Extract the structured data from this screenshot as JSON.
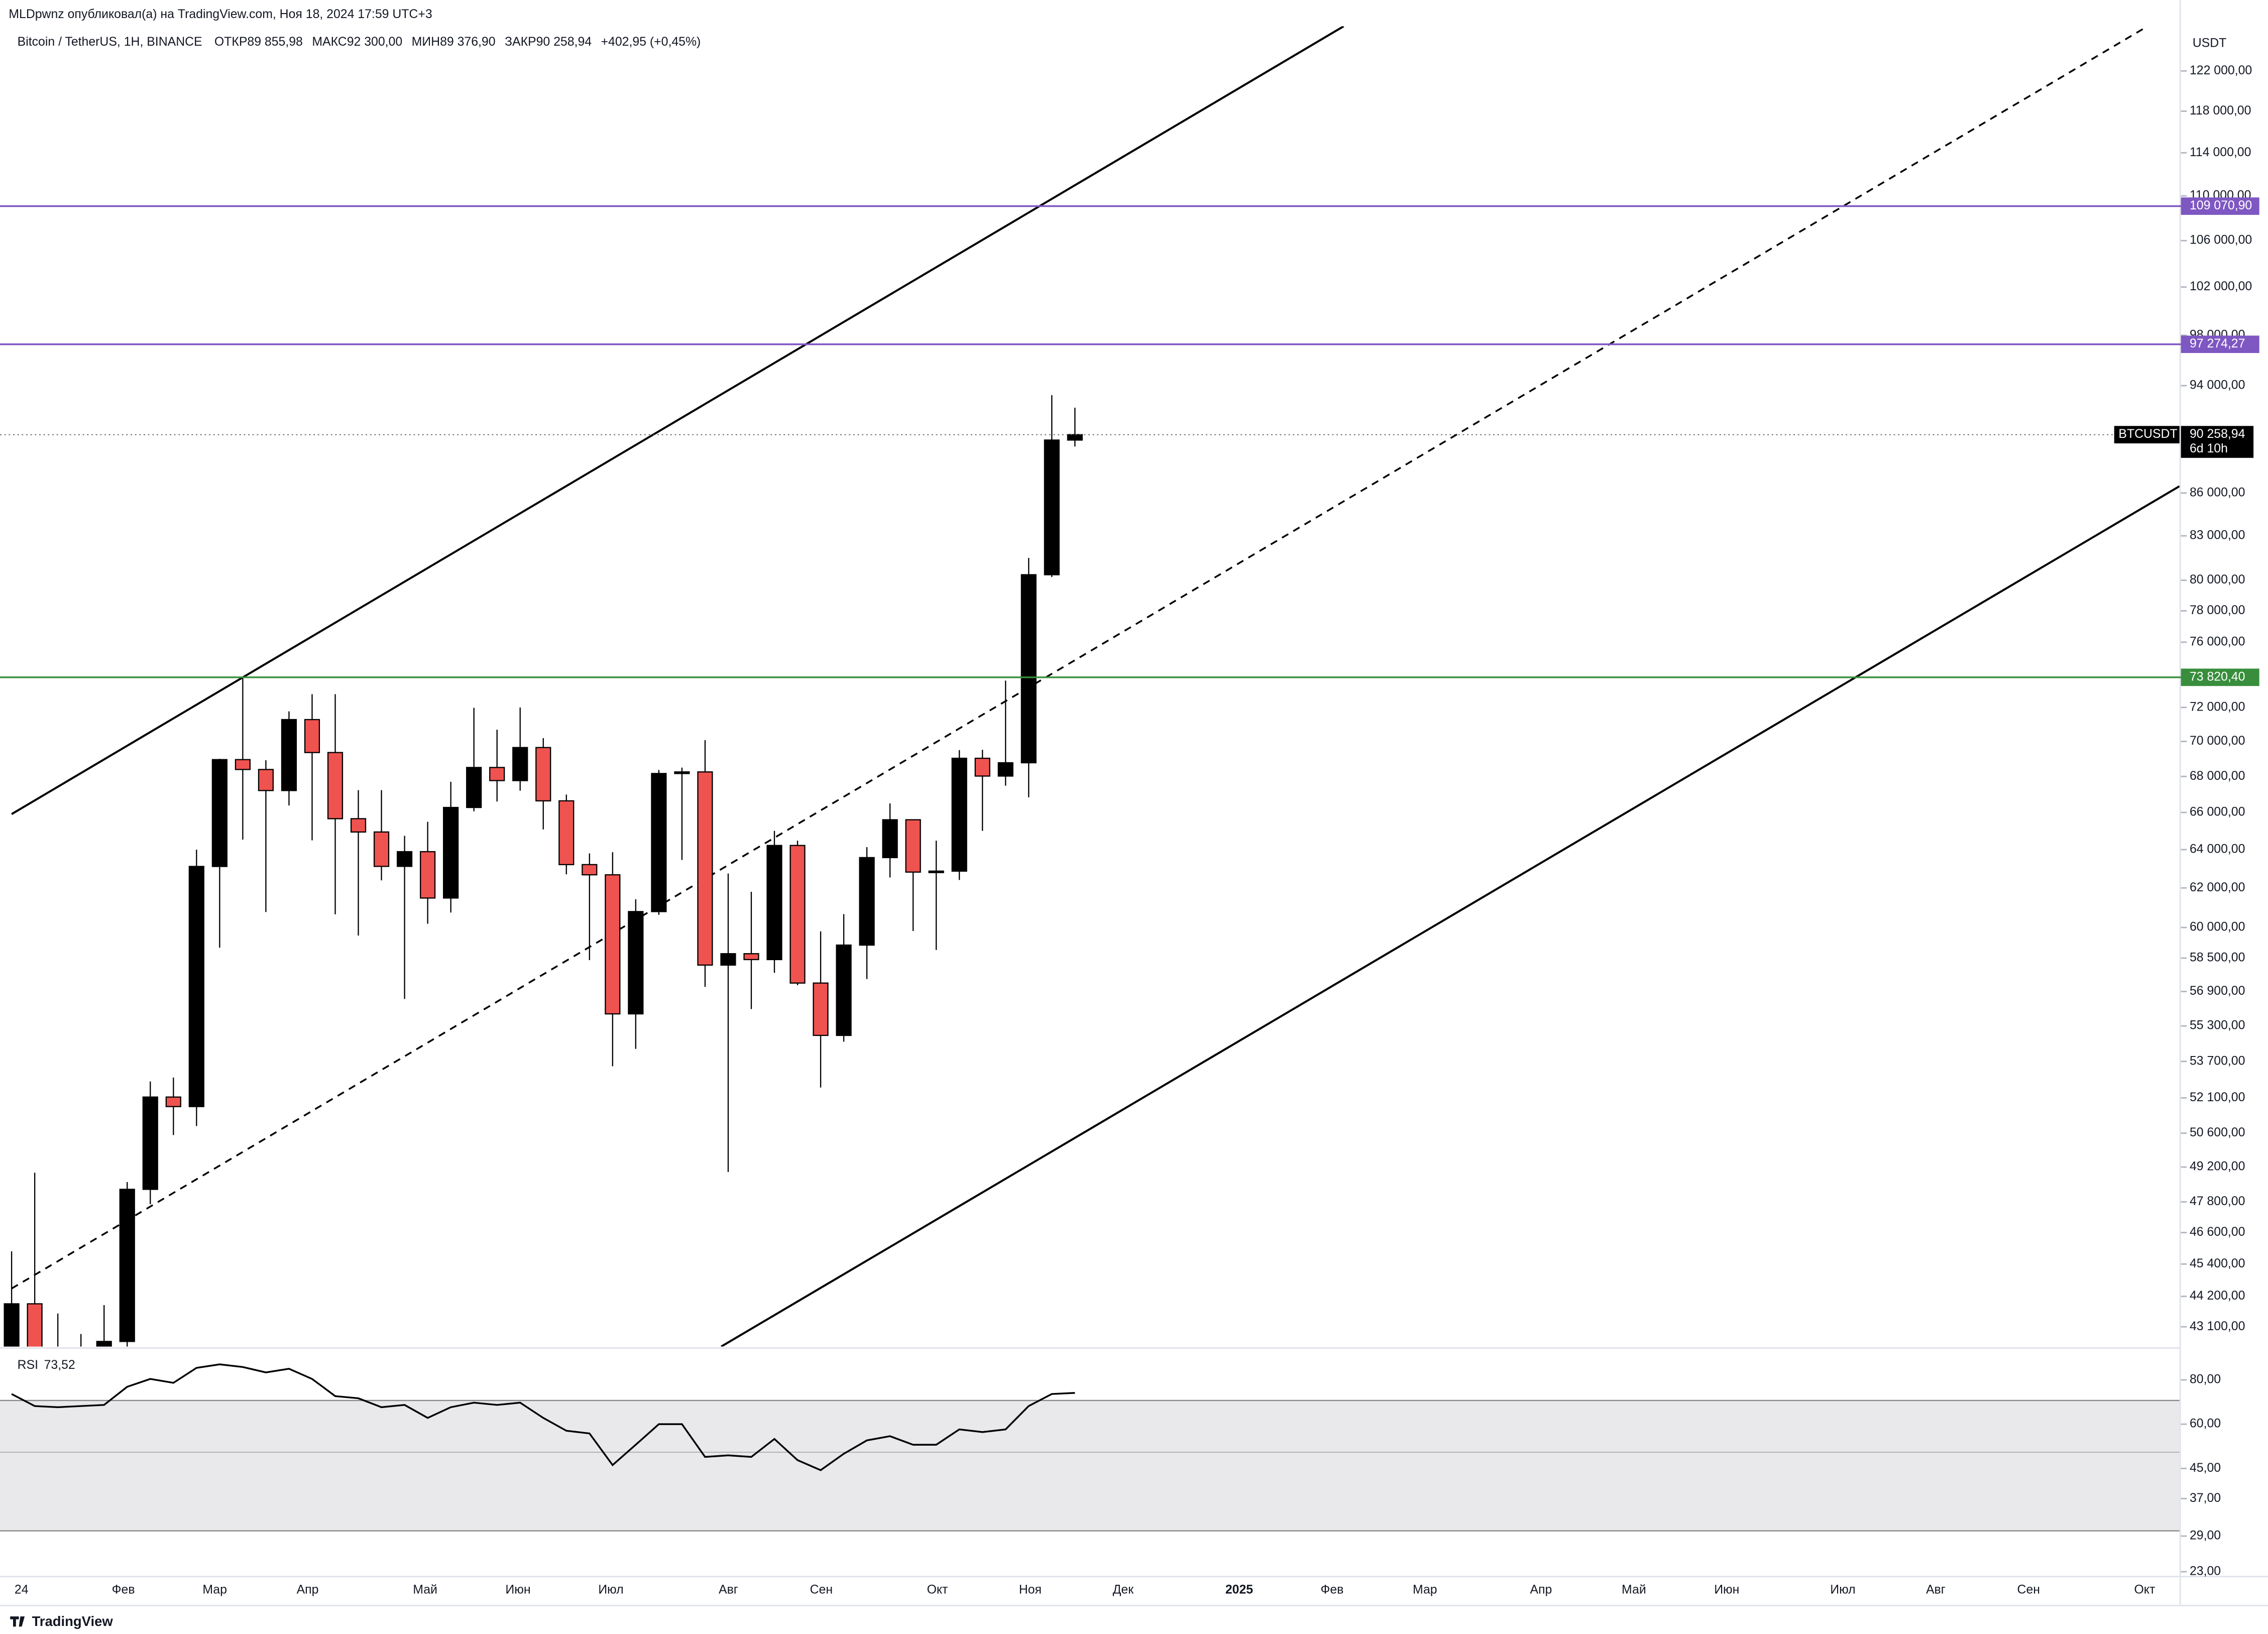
{
  "chart_data": {
    "type": "candlestick",
    "header": "MLDpwnz опубликовал(а) на TradingView.com, Ноя 18, 2024 17:59 UTC+3",
    "title": "Bitcoin / TetherUS, 1H, BINANCE",
    "legend": {
      "open_label": "ОТКР",
      "open": "89 855,98",
      "high_label": "МАКС",
      "high": "92 300,00",
      "low_label": "МИН",
      "low": "89 376,90",
      "close_label": "ЗАКР",
      "close": "90 258,94",
      "change": "+402,95 (+0,45%)"
    },
    "axis_unit": "USDT",
    "log_scale": true,
    "up_color": "#000000",
    "down_color": "#ef5350",
    "series": [
      {
        "name": "BTCUSDT",
        "open": [
          42283,
          43929,
          41732,
          41580,
          42031,
          42580,
          48299,
          52137,
          51728,
          63113,
          68955,
          68393,
          67210,
          71280,
          69360,
          65661,
          64941,
          63118,
          63891,
          61484,
          66274,
          68507,
          67766,
          69648,
          66639,
          63210,
          62678,
          55857,
          60797,
          68165,
          68255,
          58161,
          58712,
          58427,
          64220,
          57301,
          54869,
          59132,
          63578,
          65603,
          62819,
          62870,
          69031,
          68021,
          68775,
          80370,
          89855.98
        ],
        "high": [
          45879,
          48969,
          43578,
          42842,
          43882,
          48592,
          52816,
          52985,
          64000,
          69000,
          73777,
          68920,
          71769,
          72797,
          72797,
          67233,
          67232,
          64734,
          65494,
          67700,
          71979,
          70687,
          71997,
          70195,
          66985,
          63800,
          63861,
          61420,
          68366,
          68500,
          70079,
          62745,
          61800,
          65000,
          64481,
          59810,
          60670,
          64133,
          66498,
          65618,
          64478,
          69500,
          69519,
          73620,
          81500,
          93265,
          92300
        ],
        "low": [
          40750,
          41500,
          40280,
          38555,
          41804,
          42258,
          47710,
          50521,
          50901,
          59005,
          64533,
          60775,
          66385,
          64493,
          60660,
          59600,
          62391,
          56552,
          60187,
          60749,
          66060,
          66600,
          67200,
          65078,
          62700,
          58402,
          53485,
          54260,
          60632,
          63456,
          57122,
          49000,
          56078,
          57787,
          57201,
          52550,
          54583,
          57493,
          62538,
          59828,
          58895,
          62412,
          65000,
          67478,
          66835,
          80216,
          89376.9
        ],
        "close": [
          43929,
          41732,
          41580,
          42031,
          42580,
          48299,
          52137,
          51728,
          63113,
          68955,
          68393,
          67210,
          71280,
          69360,
          65661,
          64941,
          63118,
          63891,
          61484,
          66274,
          68507,
          67766,
          69648,
          66639,
          63210,
          62678,
          55857,
          60797,
          68165,
          68255,
          58161,
          58712,
          58427,
          64220,
          57301,
          54869,
          59132,
          63578,
          65603,
          62819,
          62870,
          69031,
          68021,
          68775,
          80370,
          89855.98,
          90258.94
        ]
      }
    ],
    "ylim": [
      42400,
      126600
    ],
    "yticks": [
      {
        "value": 122000,
        "label": "122 000,00"
      },
      {
        "value": 118000,
        "label": "118 000,00"
      },
      {
        "value": 114000,
        "label": "114 000,00"
      },
      {
        "value": 110000,
        "label": "110 000,00"
      },
      {
        "value": 106000,
        "label": "106 000,00"
      },
      {
        "value": 102000,
        "label": "102 000,00"
      },
      {
        "value": 98000,
        "label": "98 000,00"
      },
      {
        "value": 94000,
        "label": "94 000,00"
      },
      {
        "value": 86000,
        "label": "86 000,00"
      },
      {
        "value": 83000,
        "label": "83 000,00"
      },
      {
        "value": 80000,
        "label": "80 000,00"
      },
      {
        "value": 78000,
        "label": "78 000,00"
      },
      {
        "value": 76000,
        "label": "76 000,00"
      },
      {
        "value": 72000,
        "label": "72 000,00"
      },
      {
        "value": 70000,
        "label": "70 000,00"
      },
      {
        "value": 68000,
        "label": "68 000,00"
      },
      {
        "value": 66000,
        "label": "66 000,00"
      },
      {
        "value": 64000,
        "label": "64 000,00"
      },
      {
        "value": 62000,
        "label": "62 000,00"
      },
      {
        "value": 60000,
        "label": "60 000,00"
      },
      {
        "value": 58500,
        "label": "58 500,00"
      },
      {
        "value": 56900,
        "label": "56 900,00"
      },
      {
        "value": 55300,
        "label": "55 300,00"
      },
      {
        "value": 53700,
        "label": "53 700,00"
      },
      {
        "value": 52100,
        "label": "52 100,00"
      },
      {
        "value": 50600,
        "label": "50 600,00"
      },
      {
        "value": 49200,
        "label": "49 200,00"
      },
      {
        "value": 47800,
        "label": "47 800,00"
      },
      {
        "value": 46600,
        "label": "46 600,00"
      },
      {
        "value": 45400,
        "label": "45 400,00"
      },
      {
        "value": 44200,
        "label": "44 200,00"
      },
      {
        "value": 43100,
        "label": "43 100,00"
      }
    ],
    "price_lines": [
      {
        "value": 109070.9,
        "label": "109 070,90",
        "color": "#7e57c2"
      },
      {
        "value": 97274.27,
        "label": "97 274,27",
        "color": "#7e57c2"
      },
      {
        "value": 73820.4,
        "label": "73 820,40",
        "color": "#388e3c"
      }
    ],
    "last_price": {
      "value": 90258.94,
      "label": "90 258,94",
      "name": "BTCUSDT",
      "countdown": "6d 10h"
    },
    "x_axis_labels": [
      "24",
      "Фев",
      "Мар",
      "Апр",
      "Май",
      "Июн",
      "Июл",
      "Авг",
      "Сен",
      "Окт",
      "Ноя",
      "Дек",
      "2025",
      "Фев",
      "Мар",
      "Апр",
      "Май",
      "Июн",
      "Июл",
      "Авг",
      "Сен",
      "Окт"
    ],
    "rsi": {
      "name": "RSI",
      "value_label": "73,52",
      "log_scale": true,
      "color": "#000000",
      "band": [
        30,
        70
      ],
      "midline": 50,
      "values": [
        73,
        67.5,
        67,
        67.5,
        68,
        76.5,
        80.5,
        78.5,
        86.5,
        88.5,
        87,
        84,
        86,
        80.5,
        72,
        71,
        67,
        68,
        62.5,
        67,
        69,
        68,
        69,
        62.5,
        57.5,
        56.5,
        46,
        52.5,
        60,
        60,
        48.5,
        49,
        48.5,
        54.5,
        47.5,
        44.5,
        49.5,
        54,
        55.5,
        52.5,
        52.5,
        58,
        57,
        58,
        67.5,
        73,
        73.52
      ],
      "ylim": [
        22.4,
        97.5
      ],
      "yticks": [
        {
          "value": 80,
          "label": "80,00"
        },
        {
          "value": 60,
          "label": "60,00"
        },
        {
          "value": 45,
          "label": "45,00"
        },
        {
          "value": 37,
          "label": "37,00"
        },
        {
          "value": 29,
          "label": "29,00"
        },
        {
          "value": 23,
          "label": "23,00"
        }
      ]
    },
    "footer": "TradingView"
  }
}
